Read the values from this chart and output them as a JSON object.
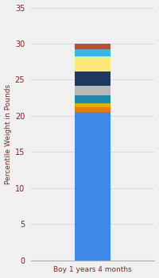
{
  "category": "Boy 1 years 4 months",
  "segments": [
    {
      "value": 20.5,
      "color": "#4189e8"
    },
    {
      "value": 0.7,
      "color": "#e87820"
    },
    {
      "value": 0.5,
      "color": "#f0a800"
    },
    {
      "value": 1.2,
      "color": "#1a8aaa"
    },
    {
      "value": 1.3,
      "color": "#b8b8b8"
    },
    {
      "value": 2.0,
      "color": "#1e3a5f"
    },
    {
      "value": 2.0,
      "color": "#fde97a"
    },
    {
      "value": 1.0,
      "color": "#38b8e0"
    },
    {
      "value": 0.8,
      "color": "#b85030"
    }
  ],
  "ylabel": "Percentile Weight in Pounds",
  "ylim": [
    0,
    35
  ],
  "yticks": [
    0,
    5,
    10,
    15,
    20,
    25,
    30,
    35
  ],
  "background_color": "#f0f0f0",
  "bar_width": 0.35,
  "xlabel_color": "#8b2020",
  "ylabel_color": "#8b2020",
  "tick_color": "#8b2020"
}
